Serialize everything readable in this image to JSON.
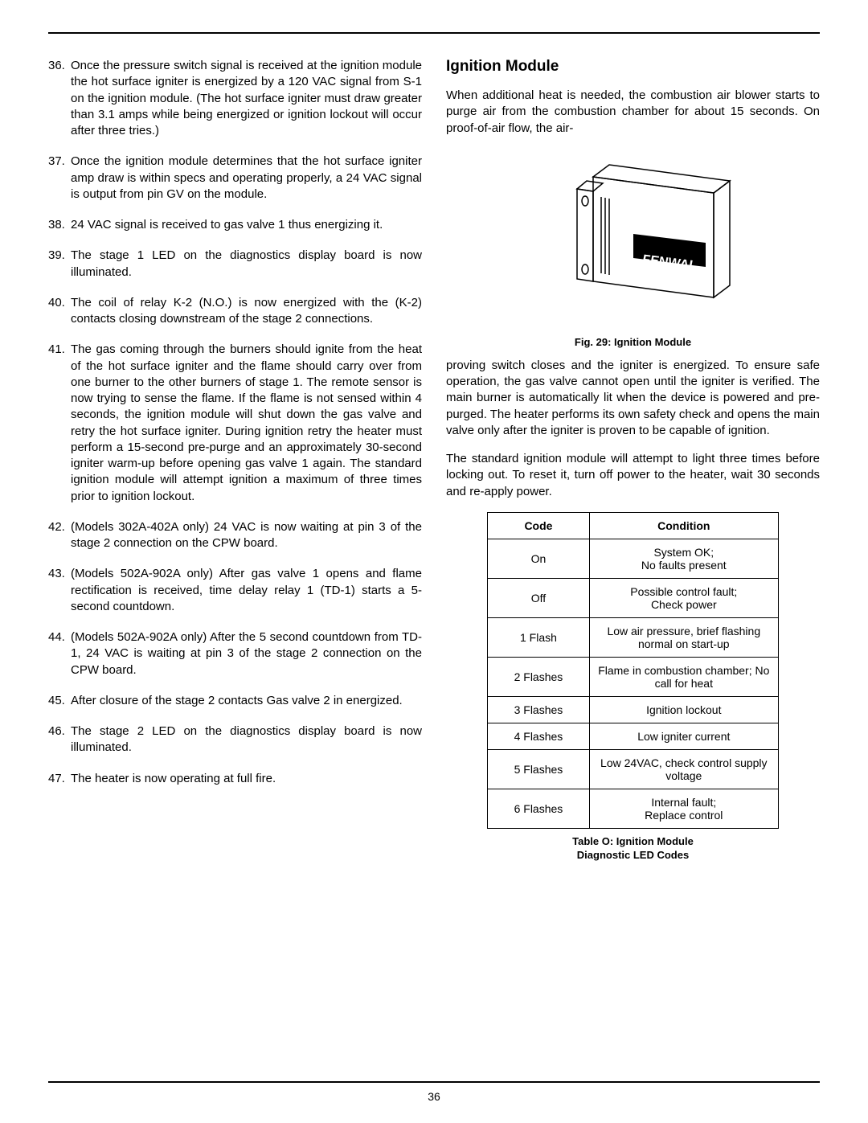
{
  "pageNumber": "36",
  "leftList": [
    {
      "num": "36.",
      "text": "Once the pressure switch signal is received at the ignition module the hot surface igniter is energized by a 120 VAC signal from S-1 on the ignition module. (The hot surface igniter must draw greater than 3.1 amps while being energized or ignition lockout will occur after three tries.)"
    },
    {
      "num": "37.",
      "text": "Once the ignition module determines that the hot surface igniter amp draw is within specs and operating properly, a 24 VAC signal is output from pin GV on the module."
    },
    {
      "num": "38.",
      "text": "24 VAC signal is received to gas valve 1 thus energizing it."
    },
    {
      "num": "39.",
      "text": "The stage 1 LED on the diagnostics display board is now illuminated."
    },
    {
      "num": "40.",
      "text": "The coil of relay K-2 (N.O.) is now energized with the (K-2) contacts closing downstream of the stage 2 connections."
    },
    {
      "num": "41.",
      "text": "The gas coming through the burners should ignite from the heat of the hot surface igniter and the flame should carry over from one burner to the other burners of stage 1. The remote sensor is now trying to sense the flame. If the flame is not sensed within 4 seconds, the ignition module will shut down the gas valve and retry the hot surface igniter. During ignition retry the heater must perform a 15-second pre-purge and an approximately 30-second igniter warm-up before opening gas valve 1 again. The standard ignition module will attempt ignition a maximum of three times prior to ignition lockout."
    },
    {
      "num": "42.",
      "text": "(Models 302A-402A only) 24 VAC is now waiting at pin 3 of the stage 2 connection on the CPW board."
    },
    {
      "num": "43.",
      "text": "(Models 502A-902A only) After gas valve 1 opens and flame rectification is received, time delay relay 1 (TD-1) starts a 5-second countdown."
    },
    {
      "num": "44.",
      "text": "(Models 502A-902A only) After the 5 second countdown from TD-1, 24 VAC is waiting at pin 3 of the stage 2 connection on the CPW board."
    },
    {
      "num": "45.",
      "text": "After closure of the stage 2 contacts Gas valve 2 in energized."
    },
    {
      "num": "46.",
      "text": "The stage 2 LED on the diagnostics display board is now illuminated."
    },
    {
      "num": "47.",
      "text": "The heater is now operating at full fire."
    }
  ],
  "right": {
    "heading": "Ignition Module",
    "para1": "When additional heat is needed, the combustion air blower starts to purge air from the combustion chamber for about 15 seconds. On proof-of-air flow, the air-",
    "figureCaption": "Fig. 29: Ignition Module",
    "figureLabel": "FENWAL",
    "para2": "proving switch closes and the igniter is energized. To ensure safe operation, the gas valve cannot open until the igniter is verified. The main burner is automatically lit when the device is powered and pre-purged. The heater performs its own safety check and opens the main valve only after the igniter is proven to be capable of ignition.",
    "para3": "The standard ignition module will attempt to light three times before locking out. To reset it, turn off power to the heater, wait 30 seconds and re-apply power.",
    "table": {
      "headers": [
        "Code",
        "Condition"
      ],
      "rows": [
        [
          "On",
          "System OK;\nNo faults present"
        ],
        [
          "Off",
          "Possible control fault;\nCheck power"
        ],
        [
          "1 Flash",
          "Low air pressure, brief flashing normal on start-up"
        ],
        [
          "2 Flashes",
          "Flame in combustion chamber; No call for heat"
        ],
        [
          "3 Flashes",
          "Ignition lockout"
        ],
        [
          "4 Flashes",
          "Low igniter current"
        ],
        [
          "5 Flashes",
          "Low 24VAC, check control supply voltage"
        ],
        [
          "6 Flashes",
          "Internal fault;\nReplace control"
        ]
      ],
      "caption": "Table O:  Ignition Module\nDiagnostic LED Codes"
    }
  }
}
